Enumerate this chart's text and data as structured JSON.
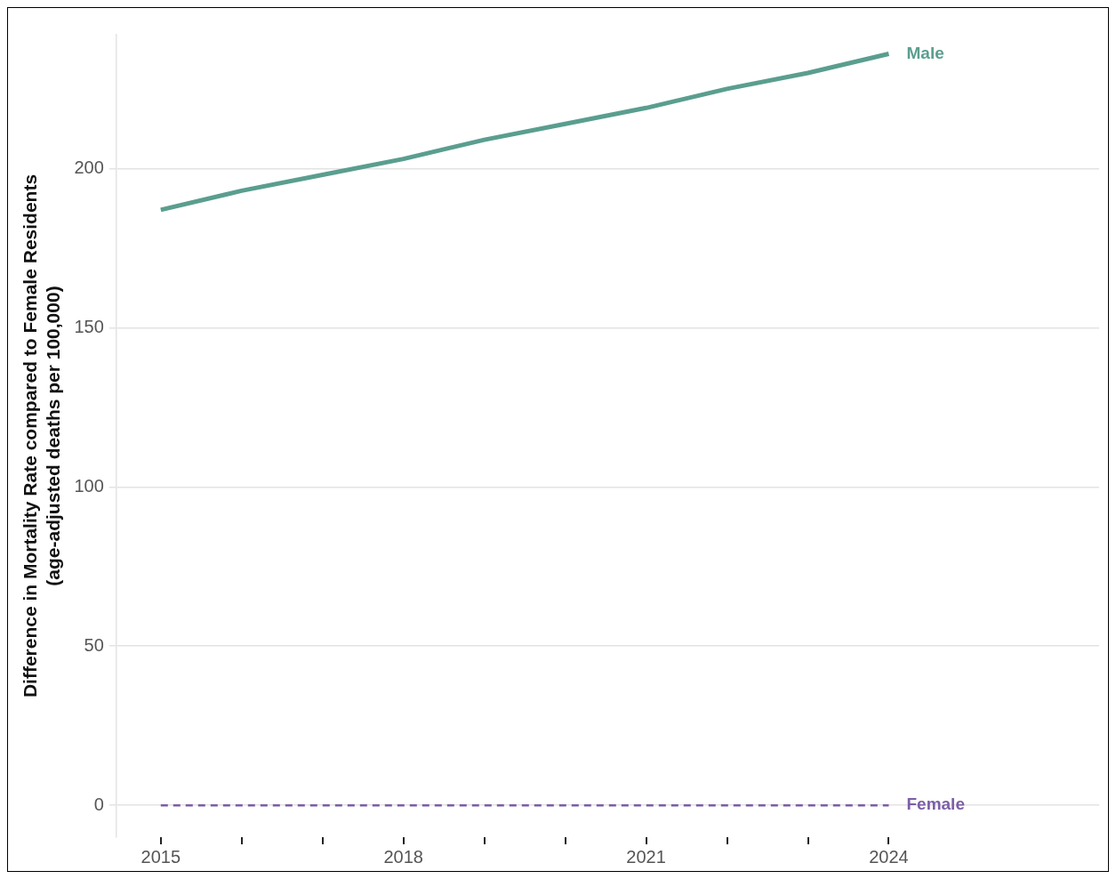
{
  "chart_data": {
    "type": "line",
    "ylabel": "Difference in Mortality Rate compared to Female Residents\n(age-adjusted deaths per 100,000)",
    "x": [
      2015,
      2016,
      2017,
      2018,
      2019,
      2020,
      2021,
      2022,
      2023,
      2024
    ],
    "series": [
      {
        "name": "Male",
        "color": "#5a9e8f",
        "values": [
          187,
          193,
          198,
          203,
          209,
          214,
          219,
          225,
          230,
          236
        ],
        "line_style": "solid"
      },
      {
        "name": "Female",
        "color": "#7b5ea7",
        "values": [
          0,
          0,
          0,
          0,
          0,
          0,
          0,
          0,
          0,
          0
        ],
        "line_style": "dashed"
      }
    ],
    "xlim": [
      2014.45,
      2026.6
    ],
    "xticks": [
      2015,
      {
        "value": 2016,
        "label": null
      },
      {
        "value": 2017,
        "label": null
      },
      2018,
      {
        "value": 2019,
        "label": null
      },
      {
        "value": 2020,
        "label": null
      },
      2021,
      {
        "value": 2022,
        "label": null
      },
      {
        "value": 2023,
        "label": null
      },
      2024
    ],
    "ylim": [
      -10,
      242
    ],
    "yticks": [
      0,
      50,
      100,
      150,
      200
    ],
    "grid": "y",
    "legend": false,
    "marker": "none"
  }
}
